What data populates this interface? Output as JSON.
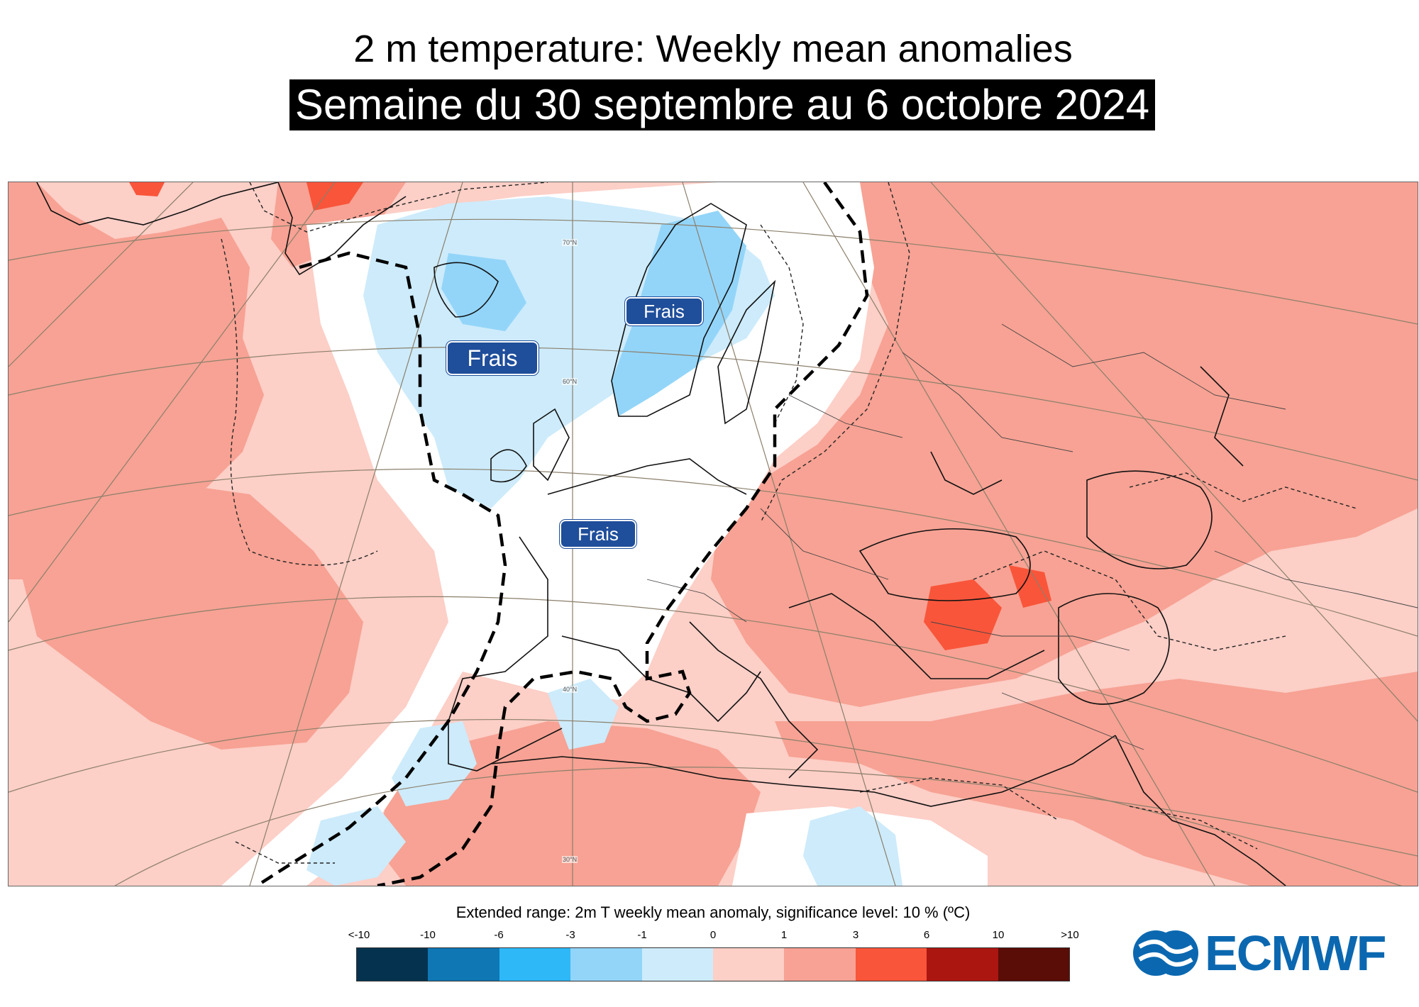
{
  "header": {
    "title": "2 m temperature: Weekly mean anomalies",
    "subtitle": "Semaine du 30 septembre au 6 octobre 2024"
  },
  "map": {
    "labels": [
      {
        "id": "frais-atlantic",
        "text": "Frais"
      },
      {
        "id": "frais-scandinavia",
        "text": "Frais"
      },
      {
        "id": "frais-france",
        "text": "Frais"
      }
    ],
    "latitude_labels": [
      "70°N",
      "60°N",
      "40°N",
      "30°N"
    ],
    "colors": {
      "warm_light": "#fccfc7",
      "warm_mid": "#f7a294",
      "warm_strong": "#f9553a",
      "cool_light": "#cdebfb",
      "cool_mid": "#93d5f9",
      "neutral": "#ffffff"
    }
  },
  "legend": {
    "title": "Extended range: 2m T weekly mean anomaly, significance level: 10 % (ºC)",
    "ticks": [
      "<-10",
      "-10",
      "-6",
      "-3",
      "-1",
      "0",
      "1",
      "3",
      "6",
      "10",
      ">10"
    ],
    "colors": [
      "#05334f",
      "#0f77b4",
      "#2eb8f7",
      "#93d5f9",
      "#cdebfb",
      "#fccfc7",
      "#f7a294",
      "#f9553a",
      "#ac1611",
      "#5a0c06"
    ]
  },
  "logo": {
    "text": "ECMWF",
    "icon": "ecmwf-logo-icon"
  }
}
